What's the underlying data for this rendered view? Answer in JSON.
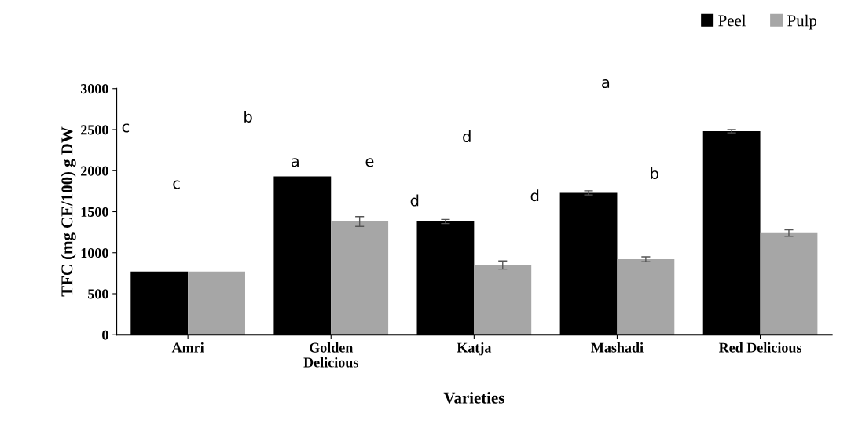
{
  "chart_data": {
    "type": "bar",
    "xlabel": "Varieties",
    "ylabel": "TFC (mg CE/100) g DW",
    "categories": [
      "Amri",
      "Golden\nDelicious",
      "Katja",
      "Mashadi",
      "Red Delicious"
    ],
    "series": [
      {
        "name": "Peel",
        "color": "#000000",
        "values": [
          770,
          1930,
          1380,
          1730,
          2480
        ],
        "errors": [
          null,
          null,
          25,
          25,
          20
        ]
      },
      {
        "name": "Pulp",
        "color": "#a6a6a6",
        "values": [
          770,
          1380,
          850,
          920,
          1240
        ],
        "errors": [
          null,
          60,
          50,
          30,
          40
        ]
      }
    ],
    "ylim": [
      0,
      3000
    ],
    "yticks": [
      0,
      500,
      1000,
      1500,
      2000,
      2500,
      3000
    ],
    "grid": false,
    "legend": "top right",
    "annotations": [
      "c",
      "c",
      "b",
      "a",
      "e",
      "d",
      "d",
      "d",
      "a",
      "b"
    ]
  }
}
